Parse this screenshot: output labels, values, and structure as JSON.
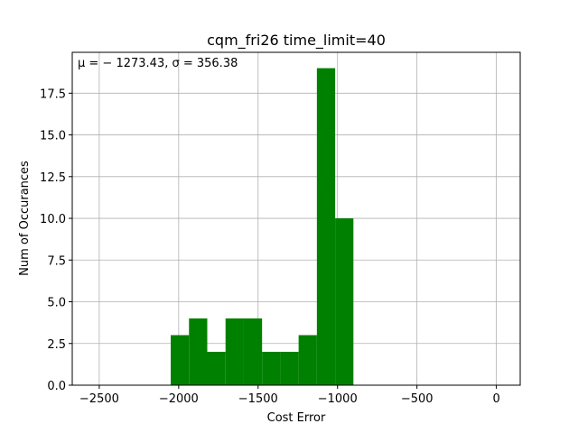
{
  "chart_data": {
    "type": "bar",
    "title": "cqm_fri26 time_limit=40",
    "xlabel": "Cost Error",
    "ylabel": "Num of Occurances",
    "annotation": "μ = − 1273.43,  σ = 356.38",
    "bar_color": "#008000",
    "grid": true,
    "xlim": [
      -2670,
      150
    ],
    "ylim": [
      0,
      19.95
    ],
    "x_ticks": [
      -2500,
      -2000,
      -1500,
      -1000,
      -500,
      0
    ],
    "x_tick_labels": [
      "−2500",
      "−2000",
      "−1500",
      "−1000",
      "−500",
      "0"
    ],
    "y_ticks": [
      0,
      2.5,
      5,
      7.5,
      10,
      12.5,
      15,
      17.5
    ],
    "y_tick_labels": [
      "0.0",
      "2.5",
      "5.0",
      "7.5",
      "10.0",
      "12.5",
      "15.0",
      "17.5"
    ],
    "bins": [
      {
        "x0": -2050,
        "x1": -1935,
        "value": 3
      },
      {
        "x0": -1935,
        "x1": -1820,
        "value": 4
      },
      {
        "x0": -1820,
        "x1": -1705,
        "value": 2
      },
      {
        "x0": -1705,
        "x1": -1590,
        "value": 4
      },
      {
        "x0": -1590,
        "x1": -1475,
        "value": 4
      },
      {
        "x0": -1475,
        "x1": -1360,
        "value": 2
      },
      {
        "x0": -1360,
        "x1": -1245,
        "value": 2
      },
      {
        "x0": -1245,
        "x1": -1130,
        "value": 3
      },
      {
        "x0": -1130,
        "x1": -1015,
        "value": 19
      },
      {
        "x0": -1015,
        "x1": -900,
        "value": 10
      }
    ]
  }
}
